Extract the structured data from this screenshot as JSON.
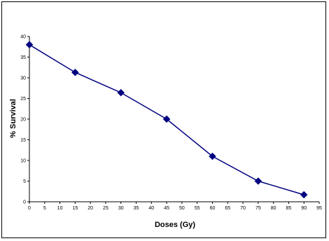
{
  "chart_data": {
    "type": "line",
    "title": "",
    "xlabel": "Doses (Gy)",
    "ylabel": "% Survival",
    "xlim": [
      0,
      95
    ],
    "ylim": [
      0,
      40
    ],
    "xticks": [
      0,
      5,
      10,
      15,
      20,
      25,
      30,
      35,
      40,
      45,
      50,
      55,
      60,
      65,
      70,
      75,
      80,
      85,
      90,
      95
    ],
    "yticks": [
      0,
      5,
      10,
      15,
      20,
      25,
      30,
      35,
      40
    ],
    "grid": false,
    "legend": "none",
    "series": [
      {
        "x": [
          0,
          15,
          30,
          45,
          60,
          75,
          90
        ],
        "y": [
          38,
          31.3,
          26.4,
          20,
          11,
          5,
          1.7
        ],
        "marker": "diamond",
        "color": "#000080"
      }
    ]
  }
}
